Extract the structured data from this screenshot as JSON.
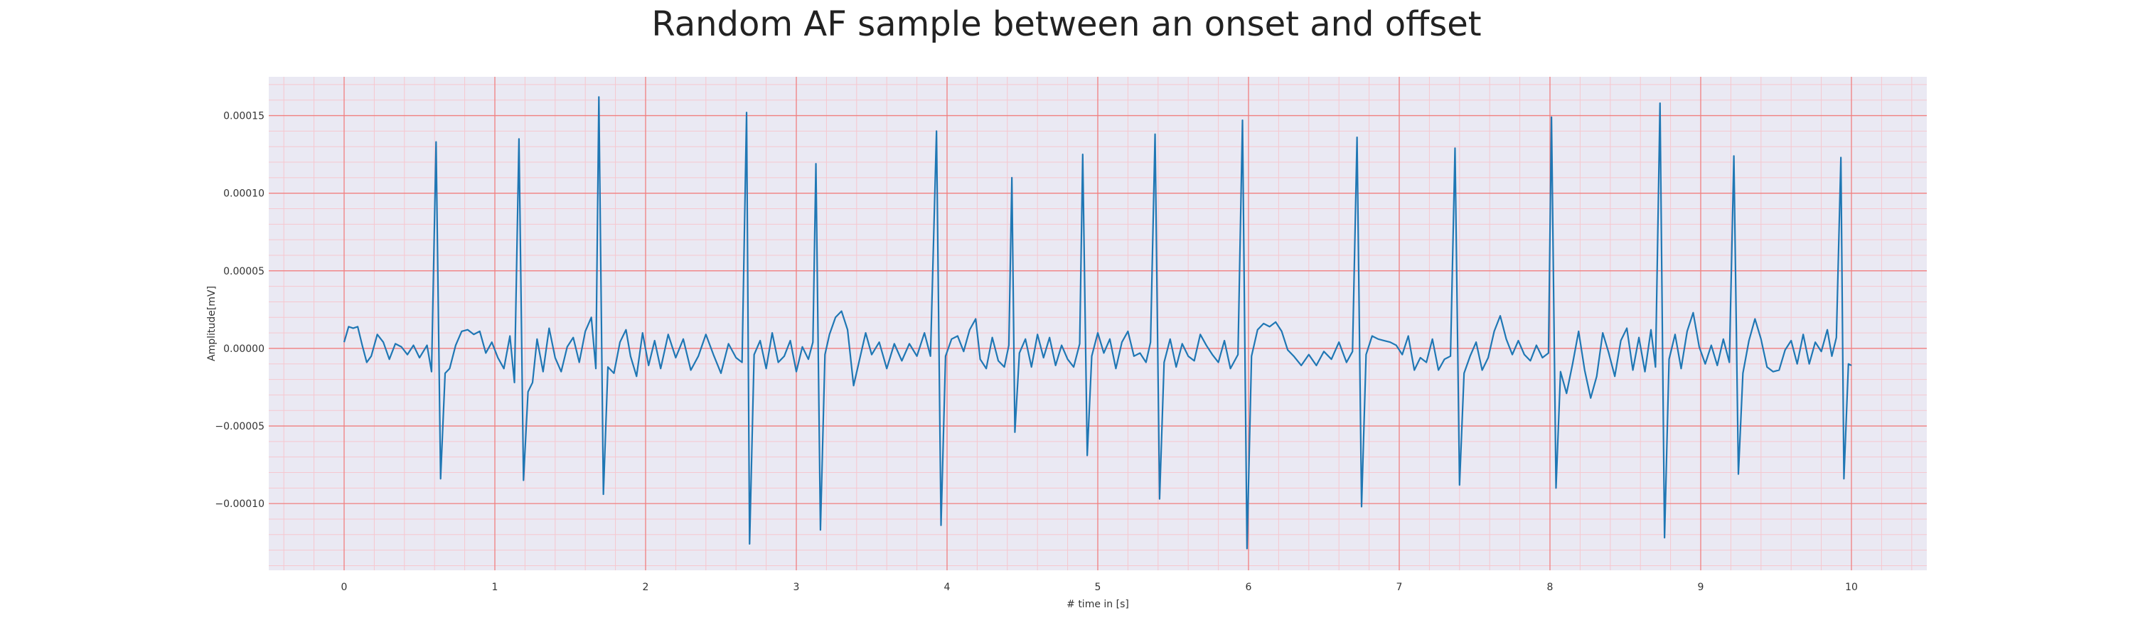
{
  "chart_data": {
    "type": "line",
    "title": "Random AF sample between an onset and offset",
    "xlabel": "# time in [s]",
    "ylabel": "Amplitude[mV]",
    "xlim": [
      -0.5,
      10.5
    ],
    "ylim": [
      -0.000143,
      0.000175
    ],
    "x_ticks": [
      0,
      1,
      2,
      3,
      4,
      5,
      6,
      7,
      8,
      9,
      10
    ],
    "x_tick_labels": [
      "0",
      "1",
      "2",
      "3",
      "4",
      "5",
      "6",
      "7",
      "8",
      "9",
      "10"
    ],
    "y_ticks": [
      -0.0001,
      -5e-05,
      0,
      5e-05,
      0.0001,
      0.00015
    ],
    "y_tick_labels": [
      "−0.00010",
      "−0.00005",
      "0.00000",
      "0.00005",
      "0.00010",
      "0.00015"
    ],
    "grid": true,
    "minor_grid": true,
    "colors": {
      "line": "#1f77b4",
      "plot_background": "#eae9f3",
      "major_grid": "#f08080",
      "minor_grid": "#f6c7cf"
    },
    "series": [
      {
        "points": [
          [
            0.0,
            4e-06
          ],
          [
            0.03,
            1.4e-05
          ],
          [
            0.06,
            1.3e-05
          ],
          [
            0.09,
            1.4e-05
          ],
          [
            0.12,
            2e-06
          ],
          [
            0.15,
            -9e-06
          ],
          [
            0.18,
            -5e-06
          ],
          [
            0.22,
            9e-06
          ],
          [
            0.26,
            4e-06
          ],
          [
            0.3,
            -7e-06
          ],
          [
            0.34,
            3e-06
          ],
          [
            0.38,
            1e-06
          ],
          [
            0.42,
            -4e-06
          ],
          [
            0.46,
            2e-06
          ],
          [
            0.5,
            -6e-06
          ],
          [
            0.55,
            2e-06
          ],
          [
            0.58,
            -1.5e-05
          ],
          [
            0.61,
            0.000133
          ],
          [
            0.64,
            -8.4e-05
          ],
          [
            0.67,
            -1.6e-05
          ],
          [
            0.7,
            -1.3e-05
          ],
          [
            0.74,
            2e-06
          ],
          [
            0.78,
            1.1e-05
          ],
          [
            0.82,
            1.2e-05
          ],
          [
            0.86,
            9e-06
          ],
          [
            0.9,
            1.1e-05
          ],
          [
            0.94,
            -3e-06
          ],
          [
            0.98,
            4e-06
          ],
          [
            1.02,
            -6e-06
          ],
          [
            1.06,
            -1.3e-05
          ],
          [
            1.1,
            8e-06
          ],
          [
            1.13,
            -2.2e-05
          ],
          [
            1.16,
            0.000135
          ],
          [
            1.19,
            -8.5e-05
          ],
          [
            1.22,
            -2.8e-05
          ],
          [
            1.25,
            -2.2e-05
          ],
          [
            1.28,
            6e-06
          ],
          [
            1.32,
            -1.5e-05
          ],
          [
            1.36,
            1.3e-05
          ],
          [
            1.4,
            -6e-06
          ],
          [
            1.44,
            -1.5e-05
          ],
          [
            1.48,
            1e-06
          ],
          [
            1.52,
            7e-06
          ],
          [
            1.56,
            -9e-06
          ],
          [
            1.6,
            1.1e-05
          ],
          [
            1.64,
            2e-05
          ],
          [
            1.67,
            -1.3e-05
          ],
          [
            1.69,
            0.000162
          ],
          [
            1.72,
            -9.4e-05
          ],
          [
            1.75,
            -1.2e-05
          ],
          [
            1.79,
            -1.6e-05
          ],
          [
            1.83,
            4e-06
          ],
          [
            1.87,
            1.2e-05
          ],
          [
            1.9,
            -5e-06
          ],
          [
            1.94,
            -1.8e-05
          ],
          [
            1.98,
            1e-05
          ],
          [
            2.02,
            -1.1e-05
          ],
          [
            2.06,
            5e-06
          ],
          [
            2.1,
            -1.3e-05
          ],
          [
            2.15,
            9e-06
          ],
          [
            2.2,
            -6e-06
          ],
          [
            2.25,
            6e-06
          ],
          [
            2.3,
            -1.4e-05
          ],
          [
            2.35,
            -5e-06
          ],
          [
            2.4,
            9e-06
          ],
          [
            2.45,
            -4e-06
          ],
          [
            2.5,
            -1.6e-05
          ],
          [
            2.55,
            3e-06
          ],
          [
            2.6,
            -6e-06
          ],
          [
            2.64,
            -9e-06
          ],
          [
            2.67,
            0.000152
          ],
          [
            2.69,
            -0.000126
          ],
          [
            2.72,
            -4e-06
          ],
          [
            2.76,
            5e-06
          ],
          [
            2.8,
            -1.3e-05
          ],
          [
            2.84,
            1e-05
          ],
          [
            2.88,
            -9e-06
          ],
          [
            2.92,
            -5e-06
          ],
          [
            2.96,
            5e-06
          ],
          [
            3.0,
            -1.5e-05
          ],
          [
            3.04,
            1e-06
          ],
          [
            3.08,
            -7e-06
          ],
          [
            3.11,
            4e-06
          ],
          [
            3.13,
            0.000119
          ],
          [
            3.16,
            -0.000117
          ],
          [
            3.19,
            -4e-06
          ],
          [
            3.22,
            9e-06
          ],
          [
            3.26,
            2e-05
          ],
          [
            3.3,
            2.4e-05
          ],
          [
            3.34,
            1.2e-05
          ],
          [
            3.38,
            -2.4e-05
          ],
          [
            3.42,
            -7e-06
          ],
          [
            3.46,
            1e-05
          ],
          [
            3.5,
            -4e-06
          ],
          [
            3.55,
            4e-06
          ],
          [
            3.6,
            -1.3e-05
          ],
          [
            3.65,
            3e-06
          ],
          [
            3.7,
            -8e-06
          ],
          [
            3.75,
            3e-06
          ],
          [
            3.8,
            -5e-06
          ],
          [
            3.85,
            1e-05
          ],
          [
            3.89,
            -5e-06
          ],
          [
            3.93,
            0.00014
          ],
          [
            3.96,
            -0.000114
          ],
          [
            3.99,
            -5e-06
          ],
          [
            4.03,
            6e-06
          ],
          [
            4.07,
            8e-06
          ],
          [
            4.11,
            -2e-06
          ],
          [
            4.15,
            1.2e-05
          ],
          [
            4.19,
            1.9e-05
          ],
          [
            4.22,
            -7e-06
          ],
          [
            4.26,
            -1.3e-05
          ],
          [
            4.3,
            7e-06
          ],
          [
            4.34,
            -8e-06
          ],
          [
            4.38,
            -1.2e-05
          ],
          [
            4.41,
            2e-06
          ],
          [
            4.43,
            0.00011
          ],
          [
            4.45,
            -5.4e-05
          ],
          [
            4.48,
            -3e-06
          ],
          [
            4.52,
            6e-06
          ],
          [
            4.56,
            -1.2e-05
          ],
          [
            4.6,
            9e-06
          ],
          [
            4.64,
            -6e-06
          ],
          [
            4.68,
            7e-06
          ],
          [
            4.72,
            -1.1e-05
          ],
          [
            4.76,
            2e-06
          ],
          [
            4.8,
            -7e-06
          ],
          [
            4.84,
            -1.2e-05
          ],
          [
            4.88,
            3e-06
          ],
          [
            4.9,
            0.000125
          ],
          [
            4.93,
            -6.9e-05
          ],
          [
            4.96,
            -5e-06
          ],
          [
            5.0,
            1e-05
          ],
          [
            5.04,
            -3e-06
          ],
          [
            5.08,
            6e-06
          ],
          [
            5.12,
            -1.3e-05
          ],
          [
            5.16,
            4e-06
          ],
          [
            5.2,
            1.1e-05
          ],
          [
            5.24,
            -5e-06
          ],
          [
            5.28,
            -3e-06
          ],
          [
            5.32,
            -9e-06
          ],
          [
            5.35,
            4e-06
          ],
          [
            5.38,
            0.000138
          ],
          [
            5.41,
            -9.7e-05
          ],
          [
            5.44,
            -9e-06
          ],
          [
            5.48,
            6e-06
          ],
          [
            5.52,
            -1.2e-05
          ],
          [
            5.56,
            3e-06
          ],
          [
            5.6,
            -5e-06
          ],
          [
            5.64,
            -8e-06
          ],
          [
            5.68,
            9e-06
          ],
          [
            5.72,
            2e-06
          ],
          [
            5.76,
            -4e-06
          ],
          [
            5.8,
            -9e-06
          ],
          [
            5.84,
            5e-06
          ],
          [
            5.88,
            -1.3e-05
          ],
          [
            5.93,
            -4e-06
          ],
          [
            5.96,
            0.000147
          ],
          [
            5.99,
            -0.000129
          ],
          [
            6.02,
            -5e-06
          ],
          [
            6.06,
            1.2e-05
          ],
          [
            6.1,
            1.6e-05
          ],
          [
            6.14,
            1.4e-05
          ],
          [
            6.18,
            1.7e-05
          ],
          [
            6.22,
            1.1e-05
          ],
          [
            6.26,
            -1e-06
          ],
          [
            6.3,
            -5e-06
          ],
          [
            6.35,
            -1.1e-05
          ],
          [
            6.4,
            -4e-06
          ],
          [
            6.45,
            -1.1e-05
          ],
          [
            6.5,
            -2e-06
          ],
          [
            6.55,
            -7e-06
          ],
          [
            6.6,
            4e-06
          ],
          [
            6.65,
            -9e-06
          ],
          [
            6.69,
            -2e-06
          ],
          [
            6.72,
            0.000136
          ],
          [
            6.75,
            -0.000102
          ],
          [
            6.78,
            -4e-06
          ],
          [
            6.82,
            8e-06
          ],
          [
            6.86,
            6e-06
          ],
          [
            6.9,
            5e-06
          ],
          [
            6.94,
            4e-06
          ],
          [
            6.98,
            2e-06
          ],
          [
            7.02,
            -4e-06
          ],
          [
            7.06,
            8e-06
          ],
          [
            7.1,
            -1.4e-05
          ],
          [
            7.14,
            -6e-06
          ],
          [
            7.18,
            -9e-06
          ],
          [
            7.22,
            6e-06
          ],
          [
            7.26,
            -1.4e-05
          ],
          [
            7.3,
            -7e-06
          ],
          [
            7.34,
            -5e-06
          ],
          [
            7.37,
            0.000129
          ],
          [
            7.4,
            -8.8e-05
          ],
          [
            7.43,
            -1.6e-05
          ],
          [
            7.47,
            -5e-06
          ],
          [
            7.51,
            4e-06
          ],
          [
            7.55,
            -1.4e-05
          ],
          [
            7.59,
            -6e-06
          ],
          [
            7.63,
            1.1e-05
          ],
          [
            7.67,
            2.1e-05
          ],
          [
            7.71,
            6e-06
          ],
          [
            7.75,
            -4e-06
          ],
          [
            7.79,
            5e-06
          ],
          [
            7.83,
            -4e-06
          ],
          [
            7.87,
            -8e-06
          ],
          [
            7.91,
            2e-06
          ],
          [
            7.95,
            -6e-06
          ],
          [
            7.99,
            -3e-06
          ],
          [
            8.01,
            0.000149
          ],
          [
            8.04,
            -9e-05
          ],
          [
            8.07,
            -1.5e-05
          ],
          [
            8.11,
            -2.9e-05
          ],
          [
            8.15,
            -1e-05
          ],
          [
            8.19,
            1.1e-05
          ],
          [
            8.23,
            -1.4e-05
          ],
          [
            8.27,
            -3.2e-05
          ],
          [
            8.31,
            -1.8e-05
          ],
          [
            8.35,
            1e-05
          ],
          [
            8.39,
            -3e-06
          ],
          [
            8.43,
            -1.8e-05
          ],
          [
            8.47,
            5e-06
          ],
          [
            8.51,
            1.3e-05
          ],
          [
            8.55,
            -1.4e-05
          ],
          [
            8.59,
            7e-06
          ],
          [
            8.63,
            -1.5e-05
          ],
          [
            8.67,
            1.2e-05
          ],
          [
            8.7,
            -1.2e-05
          ],
          [
            8.73,
            0.000158
          ],
          [
            8.76,
            -0.000122
          ],
          [
            8.79,
            -7e-06
          ],
          [
            8.83,
            9e-06
          ],
          [
            8.87,
            -1.3e-05
          ],
          [
            8.91,
            1.1e-05
          ],
          [
            8.95,
            2.3e-05
          ],
          [
            8.99,
            1e-06
          ],
          [
            9.03,
            -1e-05
          ],
          [
            9.07,
            2e-06
          ],
          [
            9.11,
            -1.1e-05
          ],
          [
            9.15,
            6e-06
          ],
          [
            9.19,
            -9e-06
          ],
          [
            9.22,
            0.000124
          ],
          [
            9.25,
            -8.1e-05
          ],
          [
            9.28,
            -1.6e-05
          ],
          [
            9.32,
            5e-06
          ],
          [
            9.36,
            1.9e-05
          ],
          [
            9.4,
            6e-06
          ],
          [
            9.44,
            -1.2e-05
          ],
          [
            9.48,
            -1.5e-05
          ],
          [
            9.52,
            -1.4e-05
          ],
          [
            9.56,
            -1e-06
          ],
          [
            9.6,
            5e-06
          ],
          [
            9.64,
            -1e-05
          ],
          [
            9.68,
            9e-06
          ],
          [
            9.72,
            -1e-05
          ],
          [
            9.76,
            4e-06
          ],
          [
            9.8,
            -2e-06
          ],
          [
            9.84,
            1.2e-05
          ],
          [
            9.87,
            -5e-06
          ],
          [
            9.9,
            7e-06
          ],
          [
            9.93,
            0.000123
          ],
          [
            9.95,
            -8.4e-05
          ],
          [
            9.98,
            -1e-05
          ],
          [
            10.0,
            -1.1e-05
          ]
        ]
      }
    ]
  }
}
